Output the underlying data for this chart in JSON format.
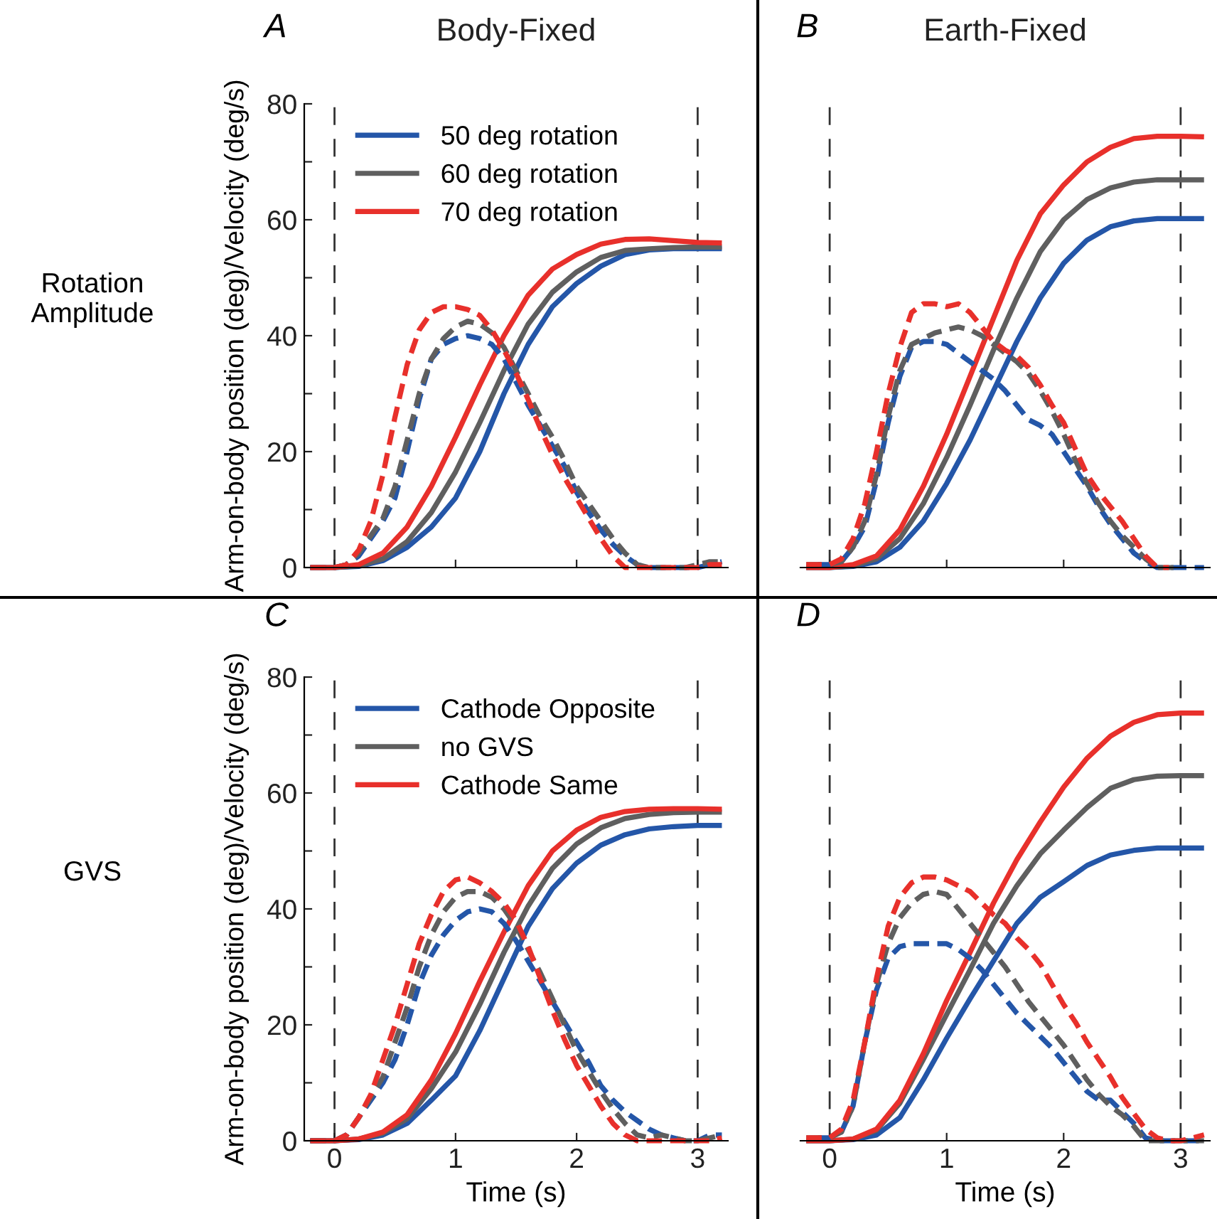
{
  "chart_data": [
    {
      "type": "line",
      "title": "Body-Fixed",
      "ylabel": "Arm-on-body position (deg)/Velocity (deg/s)",
      "annotations": [
        "A",
        "Rotation\nAmplitude"
      ],
      "x": [
        -0.2,
        -0.1,
        0,
        0.1,
        0.2,
        0.3,
        0.4,
        0.5,
        0.6,
        0.7,
        0.8,
        0.9,
        1.0,
        1.1,
        1.2,
        1.3,
        1.4,
        1.5,
        1.6,
        1.7,
        1.8,
        1.9,
        2.0,
        2.1,
        2.2,
        2.3,
        2.4,
        2.5,
        2.6,
        2.7,
        2.8,
        2.9,
        3.0,
        3.1,
        3.2
      ],
      "xlim": [
        -0.25,
        3.25
      ],
      "xticks": [
        0,
        1,
        2,
        3
      ],
      "ylim": [
        0,
        80
      ],
      "yticks": [
        0,
        {
          "value": 10,
          "label": null
        },
        20,
        {
          "value": 30,
          "label": null
        },
        40,
        {
          "value": 50,
          "label": null
        },
        60,
        {
          "value": 70,
          "label": null
        },
        80
      ],
      "tick_labels": "y",
      "legend": "top left",
      "grid": false,
      "ref_lines": [
        {
          "axis": "x",
          "value": 0,
          "color": "#333333",
          "line_style": "dashed"
        },
        {
          "axis": "x",
          "value": 3,
          "color": "#333333",
          "line_style": "dashed"
        }
      ],
      "series": [
        {
          "name": "50 deg rotation",
          "color": "#2456a8",
          "line_style": "solid",
          "x": [
            -0.2,
            0,
            0.2,
            0.4,
            0.6,
            0.8,
            1.0,
            1.2,
            1.4,
            1.6,
            1.8,
            2.0,
            2.2,
            2.4,
            2.6,
            2.8,
            3.0,
            3.2
          ],
          "values": [
            0,
            0,
            0.2,
            1.2,
            3.5,
            7,
            12,
            20,
            30,
            38.5,
            45,
            49,
            52,
            54,
            54.8,
            55,
            55,
            55
          ]
        },
        {
          "name": "60 deg rotation",
          "color": "#5f5f5f",
          "line_style": "solid",
          "x": [
            -0.2,
            0,
            0.2,
            0.4,
            0.6,
            0.8,
            1.0,
            1.2,
            1.4,
            1.6,
            1.8,
            2.0,
            2.2,
            2.4,
            2.6,
            2.8,
            3.0,
            3.2
          ],
          "values": [
            0,
            0,
            0.3,
            1.5,
            4.5,
            9.5,
            16.5,
            25,
            34,
            42,
            47.5,
            51,
            53.5,
            54.7,
            55,
            55.2,
            55.3,
            55.3
          ]
        },
        {
          "name": "70 deg rotation",
          "color": "#e8302b",
          "line_style": "solid",
          "x": [
            -0.2,
            0,
            0.2,
            0.4,
            0.6,
            0.8,
            1.0,
            1.2,
            1.4,
            1.6,
            1.8,
            2.0,
            2.2,
            2.4,
            2.6,
            2.8,
            3.0,
            3.2
          ],
          "values": [
            0,
            0,
            0.5,
            2.5,
            7,
            14,
            22.5,
            31.5,
            40,
            47,
            51.5,
            54,
            55.8,
            56.6,
            56.7,
            56.4,
            56.1,
            56
          ]
        },
        {
          "color": "#2456a8",
          "line_style": "dashed",
          "values": [
            0,
            0,
            0,
            0.5,
            2,
            5,
            8,
            12,
            20,
            29,
            36,
            38.5,
            39.5,
            40,
            39.5,
            38.5,
            36,
            32,
            28,
            24.5,
            21,
            17.5,
            13,
            9.5,
            6.5,
            4,
            2,
            0.5,
            0,
            0,
            0,
            0,
            0,
            0.5,
            1
          ]
        },
        {
          "color": "#5f5f5f",
          "line_style": "dashed",
          "values": [
            0,
            0,
            0,
            0.5,
            2.5,
            5.5,
            8.5,
            14,
            22,
            30,
            36,
            39.5,
            41.5,
            42.5,
            42,
            40.5,
            38,
            34,
            30,
            26,
            22.5,
            18.5,
            14,
            11,
            8,
            5,
            2.5,
            0.5,
            0,
            0,
            0,
            0,
            0.5,
            1,
            1
          ]
        },
        {
          "color": "#e8302b",
          "line_style": "dashed",
          "values": [
            0,
            0,
            0,
            0.5,
            3,
            8,
            16,
            26,
            35,
            41,
            44,
            45,
            45,
            44.5,
            43.5,
            41,
            37.5,
            33.5,
            29,
            24,
            19.5,
            15.5,
            12,
            8.5,
            5,
            2,
            0,
            0,
            0,
            0,
            0,
            0,
            0,
            0.5,
            0.5
          ]
        }
      ]
    },
    {
      "type": "line",
      "title": "Earth-Fixed",
      "annotations": [
        "B"
      ],
      "x": [
        -0.2,
        -0.1,
        0,
        0.1,
        0.2,
        0.3,
        0.4,
        0.5,
        0.6,
        0.7,
        0.8,
        0.9,
        1.0,
        1.1,
        1.2,
        1.3,
        1.4,
        1.5,
        1.6,
        1.7,
        1.8,
        1.9,
        2.0,
        2.1,
        2.2,
        2.3,
        2.4,
        2.5,
        2.6,
        2.7,
        2.8,
        2.9,
        3.0,
        3.1,
        3.2
      ],
      "xlim": [
        -0.25,
        3.25
      ],
      "xticks": [
        0,
        1,
        2,
        3
      ],
      "ylim": [
        0,
        80
      ],
      "tick_labels": false,
      "grid": false,
      "ref_lines": [
        {
          "axis": "x",
          "value": 0,
          "color": "#333333",
          "line_style": "dashed"
        },
        {
          "axis": "x",
          "value": 3,
          "color": "#333333",
          "line_style": "dashed"
        }
      ],
      "series": [
        {
          "color": "#2456a8",
          "line_style": "solid",
          "x": [
            -0.2,
            0,
            0.2,
            0.4,
            0.6,
            0.8,
            1.0,
            1.2,
            1.4,
            1.6,
            1.8,
            2.0,
            2.2,
            2.4,
            2.6,
            2.8,
            3.0,
            3.2
          ],
          "values": [
            0,
            0,
            0.2,
            1,
            3.5,
            8,
            14.5,
            22,
            30.5,
            39,
            46.5,
            52.5,
            56.5,
            58.8,
            59.8,
            60.2,
            60.2,
            60.2
          ]
        },
        {
          "color": "#5f5f5f",
          "line_style": "solid",
          "x": [
            -0.2,
            0,
            0.2,
            0.4,
            0.6,
            0.8,
            1.0,
            1.2,
            1.4,
            1.6,
            1.8,
            2.0,
            2.2,
            2.4,
            2.6,
            2.8,
            3.0,
            3.2
          ],
          "values": [
            0,
            0,
            0.3,
            1.5,
            5,
            11,
            19,
            28,
            37.5,
            46.5,
            54.5,
            60,
            63.5,
            65.5,
            66.5,
            66.9,
            66.9,
            66.9
          ]
        },
        {
          "color": "#e8302b",
          "line_style": "solid",
          "x": [
            -0.2,
            0,
            0.2,
            0.4,
            0.6,
            0.8,
            1.0,
            1.2,
            1.4,
            1.6,
            1.8,
            2.0,
            2.2,
            2.4,
            2.6,
            2.8,
            3.0,
            3.2
          ],
          "values": [
            0,
            0,
            0.5,
            2,
            6.5,
            14,
            23,
            33,
            43,
            53,
            61,
            66,
            70,
            72.5,
            74,
            74.4,
            74.4,
            74.3
          ]
        },
        {
          "color": "#2456a8",
          "line_style": "dashed",
          "values": [
            null,
            0.5,
            0.5,
            1,
            3.5,
            7,
            15,
            25,
            33,
            38,
            39,
            39,
            38.5,
            37,
            35.5,
            34,
            32.5,
            30.5,
            28,
            25.5,
            24.5,
            23,
            20,
            17,
            14,
            10.5,
            7.5,
            5,
            2.5,
            1,
            0,
            0,
            0,
            0,
            0
          ]
        },
        {
          "color": "#5f5f5f",
          "line_style": "dashed",
          "values": [
            0.5,
            0.5,
            0.5,
            1,
            3.5,
            8,
            16,
            26,
            34,
            38.5,
            39.5,
            40.5,
            41,
            41.5,
            41,
            40,
            38.5,
            37,
            35.5,
            33.5,
            30.5,
            27,
            23,
            18.5,
            14.5,
            11,
            8,
            5.5,
            3.5,
            1.5,
            0,
            0,
            0,
            null,
            null
          ]
        },
        {
          "color": "#e8302b",
          "line_style": "dashed",
          "values": [
            0.5,
            0.5,
            0.5,
            1.5,
            5,
            11,
            20,
            30,
            38,
            44,
            45.5,
            45.5,
            45,
            45.5,
            44,
            41.5,
            39,
            37.5,
            36.5,
            34.5,
            31.5,
            28,
            25,
            20.5,
            16,
            13,
            10.5,
            8,
            5,
            2,
            0,
            0,
            null,
            null,
            null
          ]
        }
      ]
    },
    {
      "type": "line",
      "xlabel": "Time (s)",
      "ylabel": "Arm-on-body position (deg)/Velocity (deg/s)",
      "annotations": [
        "C",
        "GVS"
      ],
      "x": [
        -0.2,
        -0.1,
        0,
        0.1,
        0.2,
        0.3,
        0.4,
        0.5,
        0.6,
        0.7,
        0.8,
        0.9,
        1.0,
        1.1,
        1.2,
        1.3,
        1.4,
        1.5,
        1.6,
        1.7,
        1.8,
        1.9,
        2.0,
        2.1,
        2.2,
        2.3,
        2.4,
        2.5,
        2.6,
        2.7,
        2.8,
        2.9,
        3.0,
        3.1,
        3.2
      ],
      "xlim": [
        -0.25,
        3.25
      ],
      "xticks": [
        0,
        1,
        2,
        3
      ],
      "ylim": [
        0,
        80
      ],
      "yticks": [
        0,
        {
          "value": 10,
          "label": null
        },
        20,
        {
          "value": 30,
          "label": null
        },
        40,
        {
          "value": 50,
          "label": null
        },
        60,
        {
          "value": 70,
          "label": null
        },
        80
      ],
      "legend": "top left",
      "grid": false,
      "ref_lines": [
        {
          "axis": "x",
          "value": 0,
          "color": "#333333",
          "line_style": "dashed"
        },
        {
          "axis": "x",
          "value": 3,
          "color": "#333333",
          "line_style": "dashed"
        }
      ],
      "series": [
        {
          "name": "Cathode Opposite",
          "color": "#2456a8",
          "line_style": "solid",
          "x": [
            -0.2,
            0,
            0.2,
            0.4,
            0.6,
            0.8,
            1.0,
            1.2,
            1.4,
            1.6,
            1.8,
            2.0,
            2.2,
            2.4,
            2.6,
            2.8,
            3.0,
            3.2
          ],
          "values": [
            0,
            0,
            0.2,
            1,
            3,
            7,
            11.2,
            19,
            28,
            37,
            43.5,
            47.9,
            51,
            52.8,
            53.8,
            54.2,
            54.4,
            54.4
          ]
        },
        {
          "name": "no GVS",
          "color": "#5f5f5f",
          "line_style": "solid",
          "x": [
            -0.2,
            0,
            0.2,
            0.4,
            0.6,
            0.8,
            1.0,
            1.2,
            1.4,
            1.6,
            1.8,
            2.0,
            2.2,
            2.4,
            2.6,
            2.8,
            3.0,
            3.2
          ],
          "values": [
            0,
            0,
            0.3,
            1.3,
            3.8,
            9,
            15.3,
            23.5,
            32.5,
            40.5,
            47,
            51.2,
            54,
            55.6,
            56.3,
            56.6,
            56.7,
            56.7
          ]
        },
        {
          "name": "Cathode Same",
          "color": "#e8302b",
          "line_style": "solid",
          "x": [
            -0.2,
            0,
            0.2,
            0.4,
            0.6,
            0.8,
            1.0,
            1.2,
            1.4,
            1.6,
            1.8,
            2.0,
            2.2,
            2.4,
            2.6,
            2.8,
            3.0,
            3.2
          ],
          "values": [
            0,
            0,
            0.3,
            1.5,
            4.5,
            10.5,
            18.5,
            27.5,
            36,
            44,
            50,
            53.6,
            55.8,
            56.8,
            57.2,
            57.3,
            57.3,
            57.2
          ]
        },
        {
          "color": "#2456a8",
          "line_style": "dashed",
          "values": [
            0,
            0,
            0,
            1,
            4,
            7,
            10,
            14,
            20,
            27,
            32,
            35.5,
            38,
            39.5,
            40,
            39.5,
            37.5,
            34.5,
            31,
            27.5,
            24,
            20.5,
            17,
            13.5,
            9.5,
            7,
            5,
            3.5,
            2,
            1,
            0.5,
            0,
            0,
            1,
            1
          ]
        },
        {
          "color": "#5f5f5f",
          "line_style": "dashed",
          "values": [
            0,
            0,
            0,
            1,
            4,
            7.5,
            11,
            17,
            23,
            30,
            35.5,
            39.5,
            42,
            43,
            43,
            42,
            40,
            37,
            33,
            29,
            24.5,
            20,
            15.5,
            12,
            8.5,
            5.5,
            3,
            1,
            0.5,
            1,
            0.5,
            0,
            0,
            0.5,
            1
          ]
        },
        {
          "color": "#e8302b",
          "line_style": "dashed",
          "values": [
            0,
            0,
            0,
            1,
            4,
            8,
            14,
            20,
            27,
            34,
            39,
            43,
            45,
            45.5,
            44.5,
            43,
            41,
            38,
            33.5,
            28,
            22.5,
            17.5,
            13,
            9.5,
            6,
            3,
            1,
            0,
            0,
            0,
            0,
            0,
            0,
            0,
            0.5
          ]
        }
      ]
    },
    {
      "type": "line",
      "xlabel": "Time (s)",
      "annotations": [
        "D"
      ],
      "x": [
        -0.2,
        -0.1,
        0,
        0.1,
        0.2,
        0.3,
        0.4,
        0.5,
        0.6,
        0.7,
        0.8,
        0.9,
        1.0,
        1.1,
        1.2,
        1.3,
        1.4,
        1.5,
        1.6,
        1.7,
        1.8,
        1.9,
        2.0,
        2.1,
        2.2,
        2.3,
        2.4,
        2.5,
        2.6,
        2.7,
        2.8,
        2.9,
        3.0,
        3.1,
        3.2
      ],
      "xlim": [
        -0.25,
        3.25
      ],
      "xticks": [
        0,
        1,
        2,
        3
      ],
      "ylim": [
        0,
        80
      ],
      "tick_labels": "x",
      "grid": false,
      "ref_lines": [
        {
          "axis": "x",
          "value": 0,
          "color": "#333333",
          "line_style": "dashed"
        },
        {
          "axis": "x",
          "value": 3,
          "color": "#333333",
          "line_style": "dashed"
        }
      ],
      "series": [
        {
          "color": "#2456a8",
          "line_style": "solid",
          "x": [
            -0.2,
            0,
            0.2,
            0.4,
            0.6,
            0.8,
            1.0,
            1.2,
            1.4,
            1.6,
            1.8,
            2.0,
            2.2,
            2.4,
            2.6,
            2.8,
            3.0,
            3.2
          ],
          "values": [
            0,
            0,
            0.2,
            1,
            4,
            10.5,
            17.7,
            24.5,
            31,
            37.5,
            42,
            44.7,
            47.5,
            49.3,
            50.1,
            50.5,
            50.5,
            50.5
          ]
        },
        {
          "color": "#5f5f5f",
          "line_style": "solid",
          "x": [
            -0.2,
            0,
            0.2,
            0.4,
            0.6,
            0.8,
            1.0,
            1.2,
            1.4,
            1.6,
            1.8,
            2.0,
            2.2,
            2.4,
            2.6,
            2.8,
            3.0,
            3.2
          ],
          "values": [
            0,
            0,
            0.3,
            1.8,
            6.5,
            14,
            21.8,
            29.5,
            37.5,
            44,
            49.5,
            53.6,
            57.5,
            60.8,
            62.3,
            62.9,
            63,
            63
          ]
        },
        {
          "color": "#e8302b",
          "line_style": "solid",
          "x": [
            -0.2,
            0,
            0.2,
            0.4,
            0.6,
            0.8,
            1.0,
            1.2,
            1.4,
            1.6,
            1.8,
            2.0,
            2.2,
            2.4,
            2.6,
            2.8,
            3.0,
            3.2
          ],
          "values": [
            0,
            0,
            0.3,
            2,
            7,
            15,
            24.2,
            32.5,
            41,
            48.5,
            55,
            61,
            66,
            69.8,
            72.2,
            73.5,
            73.8,
            73.8
          ]
        },
        {
          "color": "#2456a8",
          "line_style": "dashed",
          "values": [
            null,
            0.5,
            0.5,
            1.5,
            6,
            17,
            26,
            31.5,
            33.5,
            34,
            34,
            34,
            34,
            33,
            31.5,
            29.5,
            27,
            24.5,
            22,
            20,
            18,
            16,
            13.5,
            11,
            8.5,
            7,
            7,
            5,
            3,
            0.5,
            0,
            0,
            0,
            0,
            0
          ]
        },
        {
          "color": "#5f5f5f",
          "line_style": "dashed",
          "values": [
            0.5,
            0.5,
            0.5,
            1.5,
            6,
            17,
            27,
            34,
            38.5,
            41,
            42.5,
            43,
            42.5,
            40,
            37.5,
            35,
            32.5,
            30,
            27,
            24,
            21.5,
            19,
            16.5,
            13.5,
            10.5,
            8,
            6,
            4.5,
            2.5,
            0,
            0,
            0,
            0,
            0,
            0
          ]
        },
        {
          "color": "#e8302b",
          "line_style": "dashed",
          "values": [
            0.5,
            0.5,
            0.5,
            2,
            7,
            17,
            28,
            37,
            42,
            44.5,
            45.5,
            45.5,
            45,
            44,
            43,
            41,
            39,
            37.5,
            35,
            33,
            30.5,
            27,
            23.5,
            20.5,
            17,
            14,
            11,
            7.5,
            4.7,
            2,
            0.5,
            0,
            0,
            0.5,
            1
          ]
        }
      ]
    }
  ]
}
